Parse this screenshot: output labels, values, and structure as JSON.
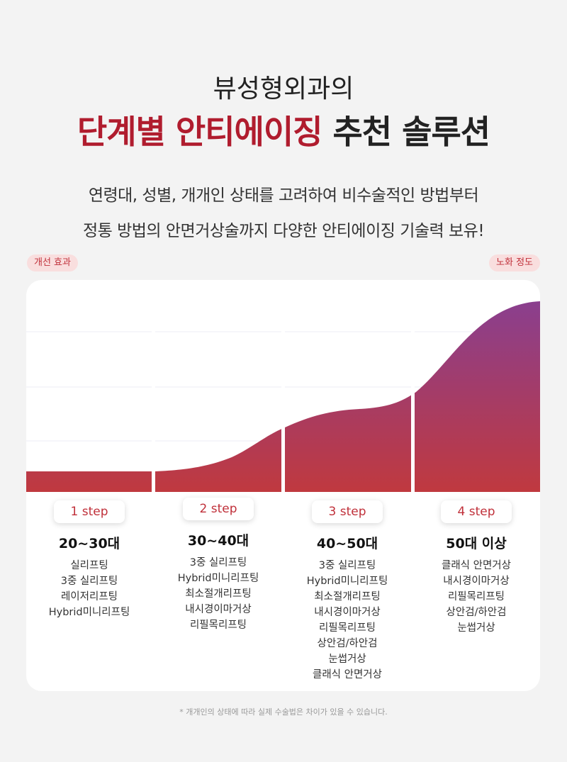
{
  "header": {
    "subtitle": "뷰성형외과의",
    "title_highlight": "단계별 안티에이징",
    "title_rest": "추천 솔루션"
  },
  "intro": [
    "연령대, 성별, 개개인 상태를 고려하여 비수술적인 방법부터",
    "정통 방법의 안면거상술까지 다양한 안티에이징 기술력 보유!"
  ],
  "axis": {
    "y_label": "개선 효과",
    "x_label": "노화 정도"
  },
  "steps": [
    {
      "label": "1 step",
      "age": "20~30대",
      "items": [
        "실리프팅",
        "3중 실리프팅",
        "레이저리프팅",
        "Hybrid미니리프팅"
      ]
    },
    {
      "label": "2 step",
      "age": "30~40대",
      "items": [
        "3중 실리프팅",
        "Hybrid미니리프팅",
        "최소절개리프팅",
        "내시경이마거상",
        "리필목리프팅"
      ]
    },
    {
      "label": "3 step",
      "age": "40~50대",
      "items": [
        "3중 실리프팅",
        "Hybrid미니리프팅",
        "최소절개리프팅",
        "내시경이마거상",
        "리필목리프팅",
        "상안검/하안검",
        "눈썹거상",
        "클래식 안면거상"
      ]
    },
    {
      "label": "4 step",
      "age": "50대 이상",
      "items": [
        "클래식 안면거상",
        "내시경이마거상",
        "리필목리프팅",
        "상안검/하안검",
        "눈썹거상"
      ]
    }
  ],
  "footnote": "* 개개인의 상태에 따라 실제 수술법은 차이가 있을 수 있습니다."
}
